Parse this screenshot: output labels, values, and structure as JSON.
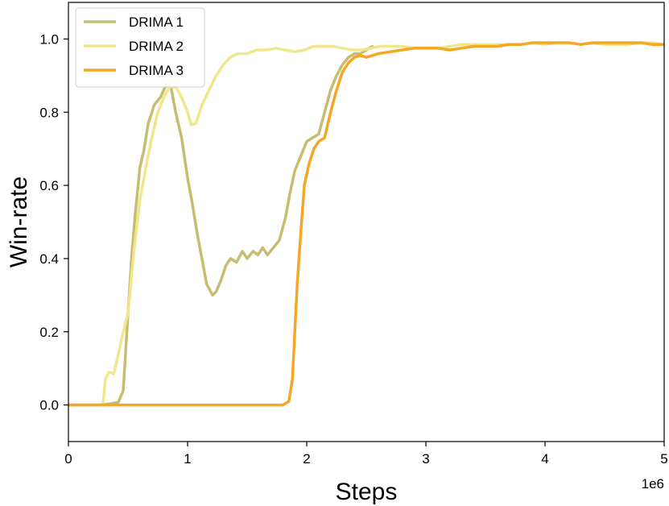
{
  "chart_data": {
    "type": "line",
    "xlabel": "Steps",
    "ylabel": "Win-rate",
    "x_scale_label": "1e6",
    "xlim": [
      0,
      5
    ],
    "ylim": [
      -0.1,
      1.1
    ],
    "xticks": [
      0,
      1,
      2,
      3,
      4,
      5
    ],
    "xtick_labels": [
      "0",
      "1",
      "2",
      "3",
      "4",
      "5"
    ],
    "yticks": [
      0.0,
      0.2,
      0.4,
      0.6,
      0.8,
      1.0
    ],
    "ytick_labels": [
      "0.0",
      "0.2",
      "0.4",
      "0.6",
      "0.8",
      "1.0"
    ],
    "grid": false,
    "legend_position": "top-left",
    "series": [
      {
        "name": "DRIMA 1",
        "color": "#c4bd72",
        "points": [
          [
            0.0,
            0.0
          ],
          [
            0.25,
            0.0
          ],
          [
            0.35,
            0.003
          ],
          [
            0.42,
            0.008
          ],
          [
            0.46,
            0.04
          ],
          [
            0.5,
            0.25
          ],
          [
            0.53,
            0.4
          ],
          [
            0.56,
            0.52
          ],
          [
            0.6,
            0.65
          ],
          [
            0.63,
            0.69
          ],
          [
            0.67,
            0.77
          ],
          [
            0.72,
            0.82
          ],
          [
            0.77,
            0.84
          ],
          [
            0.82,
            0.875
          ],
          [
            0.86,
            0.87
          ],
          [
            0.9,
            0.8
          ],
          [
            0.95,
            0.73
          ],
          [
            1.0,
            0.62
          ],
          [
            1.04,
            0.55
          ],
          [
            1.08,
            0.47
          ],
          [
            1.12,
            0.4
          ],
          [
            1.16,
            0.33
          ],
          [
            1.21,
            0.3
          ],
          [
            1.24,
            0.31
          ],
          [
            1.28,
            0.34
          ],
          [
            1.32,
            0.38
          ],
          [
            1.36,
            0.4
          ],
          [
            1.41,
            0.39
          ],
          [
            1.46,
            0.42
          ],
          [
            1.5,
            0.4
          ],
          [
            1.55,
            0.42
          ],
          [
            1.59,
            0.41
          ],
          [
            1.63,
            0.43
          ],
          [
            1.67,
            0.41
          ],
          [
            1.72,
            0.43
          ],
          [
            1.77,
            0.45
          ],
          [
            1.82,
            0.51
          ],
          [
            1.86,
            0.58
          ],
          [
            1.9,
            0.64
          ],
          [
            1.95,
            0.68
          ],
          [
            2.0,
            0.72
          ],
          [
            2.05,
            0.73
          ],
          [
            2.1,
            0.74
          ],
          [
            2.15,
            0.8
          ],
          [
            2.2,
            0.86
          ],
          [
            2.25,
            0.9
          ],
          [
            2.3,
            0.93
          ],
          [
            2.35,
            0.95
          ],
          [
            2.4,
            0.96
          ],
          [
            2.45,
            0.96
          ],
          [
            2.5,
            0.97
          ],
          [
            2.55,
            0.98
          ]
        ]
      },
      {
        "name": "DRIMA 2",
        "color": "#f0e68c",
        "points": [
          [
            0.0,
            0.0
          ],
          [
            0.29,
            0.0
          ],
          [
            0.31,
            0.07
          ],
          [
            0.34,
            0.09
          ],
          [
            0.38,
            0.085
          ],
          [
            0.42,
            0.14
          ],
          [
            0.46,
            0.2
          ],
          [
            0.5,
            0.25
          ],
          [
            0.55,
            0.42
          ],
          [
            0.6,
            0.56
          ],
          [
            0.65,
            0.65
          ],
          [
            0.7,
            0.73
          ],
          [
            0.75,
            0.8
          ],
          [
            0.8,
            0.84
          ],
          [
            0.85,
            0.87
          ],
          [
            0.9,
            0.87
          ],
          [
            0.95,
            0.84
          ],
          [
            1.0,
            0.8
          ],
          [
            1.03,
            0.765
          ],
          [
            1.07,
            0.77
          ],
          [
            1.12,
            0.82
          ],
          [
            1.18,
            0.86
          ],
          [
            1.24,
            0.9
          ],
          [
            1.3,
            0.93
          ],
          [
            1.36,
            0.95
          ],
          [
            1.42,
            0.96
          ],
          [
            1.5,
            0.96
          ],
          [
            1.58,
            0.97
          ],
          [
            1.66,
            0.97
          ],
          [
            1.74,
            0.975
          ],
          [
            1.82,
            0.97
          ],
          [
            1.9,
            0.965
          ],
          [
            1.98,
            0.97
          ],
          [
            2.06,
            0.98
          ],
          [
            2.14,
            0.98
          ],
          [
            2.22,
            0.98
          ],
          [
            2.3,
            0.975
          ],
          [
            2.38,
            0.97
          ],
          [
            2.46,
            0.97
          ],
          [
            2.54,
            0.975
          ],
          [
            2.62,
            0.98
          ],
          [
            2.7,
            0.98
          ],
          [
            2.8,
            0.98
          ],
          [
            2.9,
            0.975
          ],
          [
            3.0,
            0.975
          ],
          [
            3.1,
            0.975
          ],
          [
            3.2,
            0.98
          ],
          [
            3.3,
            0.985
          ],
          [
            3.4,
            0.985
          ],
          [
            3.5,
            0.985
          ],
          [
            3.6,
            0.985
          ],
          [
            3.7,
            0.985
          ],
          [
            3.8,
            0.985
          ],
          [
            3.9,
            0.99
          ],
          [
            4.0,
            0.985
          ],
          [
            4.1,
            0.99
          ],
          [
            4.2,
            0.99
          ],
          [
            4.3,
            0.985
          ],
          [
            4.4,
            0.99
          ],
          [
            4.5,
            0.985
          ],
          [
            4.6,
            0.985
          ],
          [
            4.7,
            0.985
          ],
          [
            4.8,
            0.99
          ],
          [
            4.9,
            0.99
          ],
          [
            5.0,
            0.985
          ]
        ]
      },
      {
        "name": "DRIMA 3",
        "color": "#f5a623",
        "points": [
          [
            0.0,
            0.0
          ],
          [
            1.8,
            0.0
          ],
          [
            1.85,
            0.01
          ],
          [
            1.88,
            0.07
          ],
          [
            1.9,
            0.2
          ],
          [
            1.92,
            0.33
          ],
          [
            1.95,
            0.47
          ],
          [
            1.98,
            0.6
          ],
          [
            2.02,
            0.66
          ],
          [
            2.06,
            0.7
          ],
          [
            2.1,
            0.72
          ],
          [
            2.15,
            0.73
          ],
          [
            2.2,
            0.8
          ],
          [
            2.25,
            0.86
          ],
          [
            2.3,
            0.91
          ],
          [
            2.35,
            0.935
          ],
          [
            2.4,
            0.95
          ],
          [
            2.45,
            0.955
          ],
          [
            2.5,
            0.95
          ],
          [
            2.55,
            0.955
          ],
          [
            2.6,
            0.96
          ],
          [
            2.7,
            0.965
          ],
          [
            2.8,
            0.97
          ],
          [
            2.9,
            0.975
          ],
          [
            3.0,
            0.975
          ],
          [
            3.1,
            0.975
          ],
          [
            3.2,
            0.97
          ],
          [
            3.3,
            0.975
          ],
          [
            3.4,
            0.98
          ],
          [
            3.5,
            0.98
          ],
          [
            3.6,
            0.98
          ],
          [
            3.7,
            0.985
          ],
          [
            3.8,
            0.985
          ],
          [
            3.9,
            0.99
          ],
          [
            4.0,
            0.99
          ],
          [
            4.1,
            0.99
          ],
          [
            4.2,
            0.99
          ],
          [
            4.3,
            0.985
          ],
          [
            4.4,
            0.99
          ],
          [
            4.5,
            0.99
          ],
          [
            4.6,
            0.99
          ],
          [
            4.7,
            0.99
          ],
          [
            4.8,
            0.99
          ],
          [
            4.9,
            0.985
          ],
          [
            5.0,
            0.985
          ]
        ]
      }
    ]
  }
}
